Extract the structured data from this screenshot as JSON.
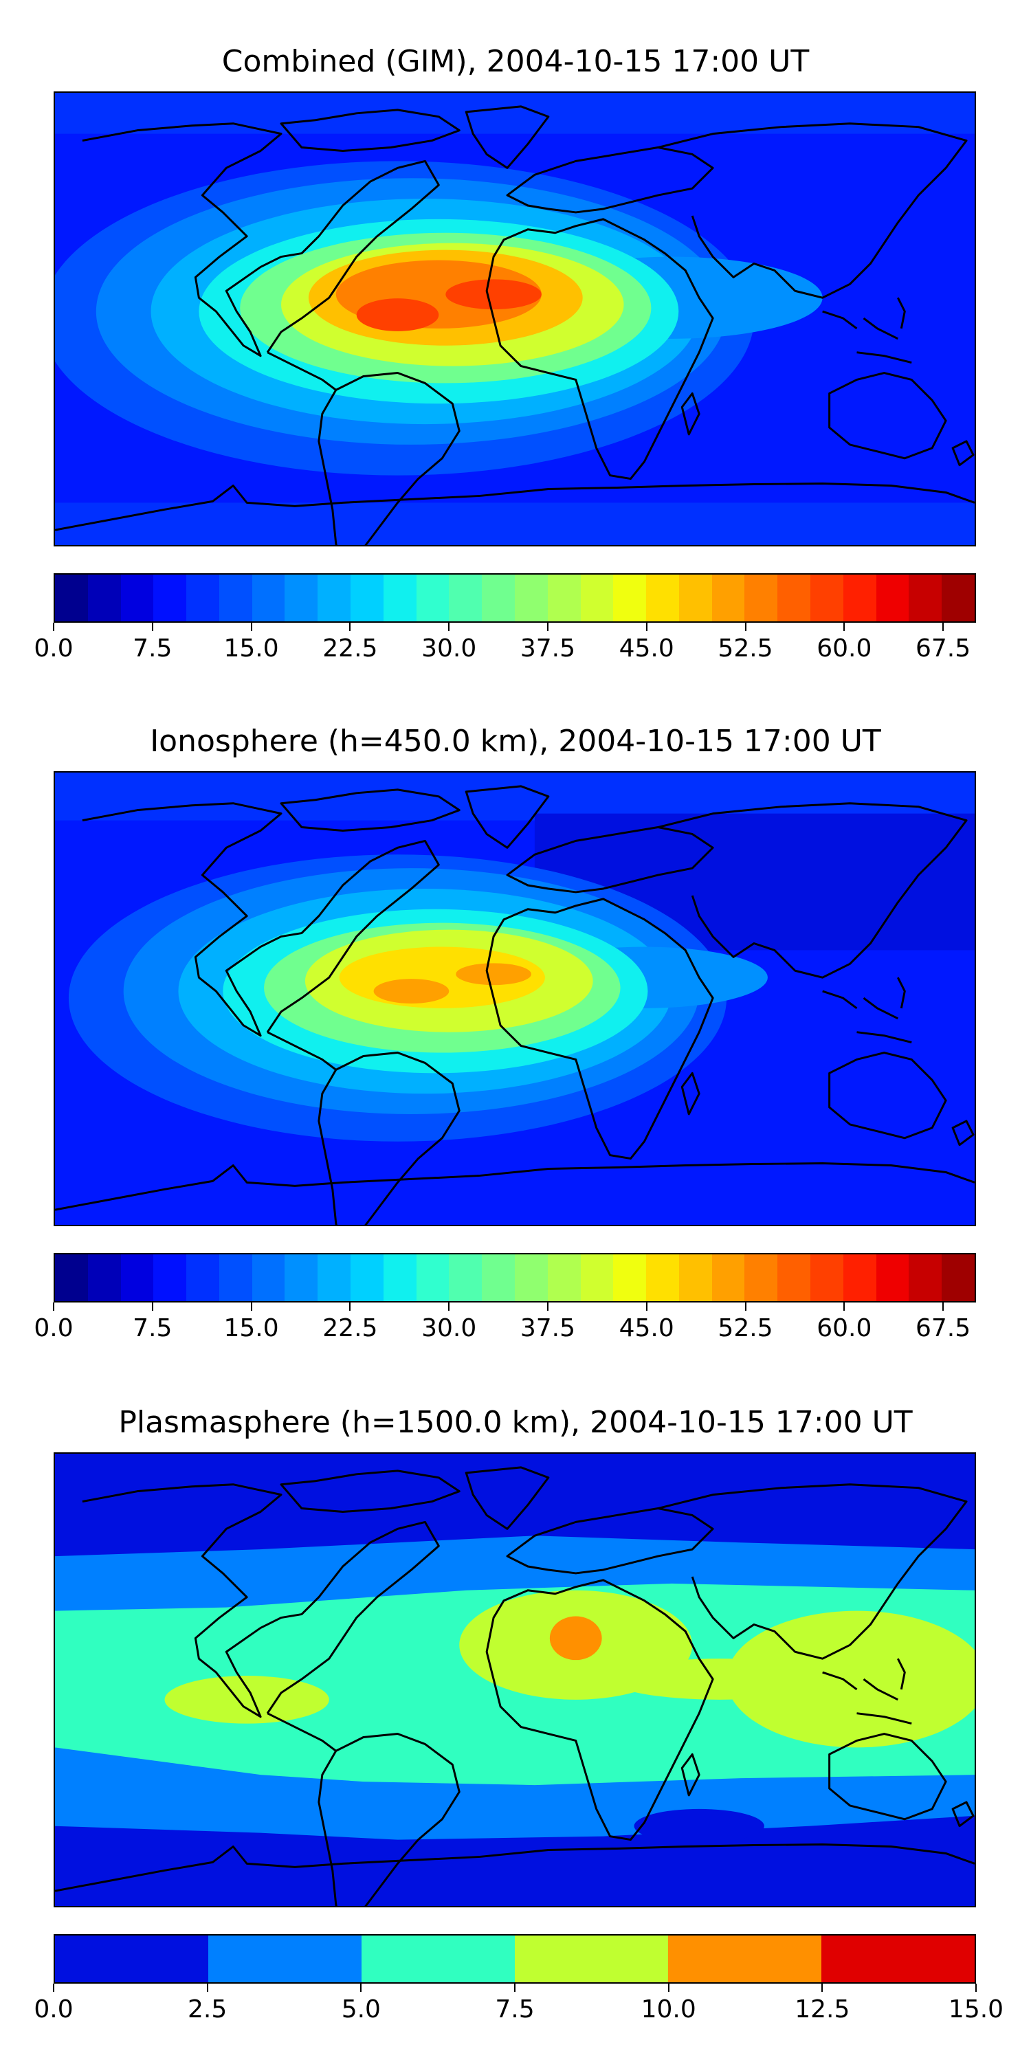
{
  "panels": [
    {
      "title": "Combined (GIM), 2004-10-15 17:00 UT",
      "tick_labels": [
        "0.0",
        "7.5",
        "15.0",
        "22.5",
        "30.0",
        "37.5",
        "45.0",
        "52.5",
        "60.0",
        "67.5"
      ],
      "tick_values": [
        0,
        7.5,
        15,
        22.5,
        30,
        37.5,
        45,
        52.5,
        60,
        67.5
      ],
      "range": [
        0,
        70
      ],
      "colors": [
        "#00008f",
        "#0000b8",
        "#0000e0",
        "#0010ff",
        "#0030ff",
        "#0050ff",
        "#0070ff",
        "#0090ff",
        "#00b0ff",
        "#00d0ff",
        "#10f0ef",
        "#30ffcf",
        "#50ffaf",
        "#70ff8f",
        "#90ff6f",
        "#b0ff4f",
        "#d0ff2f",
        "#f0ff0f",
        "#ffe000",
        "#ffc000",
        "#ffa000",
        "#ff8000",
        "#ff6000",
        "#ff4000",
        "#ff2000",
        "#ef0000",
        "#c70000",
        "#9f0000"
      ]
    },
    {
      "title": "Ionosphere  (h=450.0 km), 2004-10-15 17:00 UT",
      "tick_labels": [
        "0.0",
        "7.5",
        "15.0",
        "22.5",
        "30.0",
        "37.5",
        "45.0",
        "52.5",
        "60.0",
        "67.5"
      ],
      "tick_values": [
        0,
        7.5,
        15,
        22.5,
        30,
        37.5,
        45,
        52.5,
        60,
        67.5
      ],
      "range": [
        0,
        70
      ],
      "colors": [
        "#00008f",
        "#0000b8",
        "#0000e0",
        "#0010ff",
        "#0030ff",
        "#0050ff",
        "#0070ff",
        "#0090ff",
        "#00b0ff",
        "#00d0ff",
        "#10f0ef",
        "#30ffcf",
        "#50ffaf",
        "#70ff8f",
        "#90ff6f",
        "#b0ff4f",
        "#d0ff2f",
        "#f0ff0f",
        "#ffe000",
        "#ffc000",
        "#ffa000",
        "#ff8000",
        "#ff6000",
        "#ff4000",
        "#ff2000",
        "#ef0000",
        "#c70000",
        "#9f0000"
      ]
    },
    {
      "title": "Plasmasphere (h=1500.0 km), 2004-10-15 17:00 UT",
      "tick_labels": [
        "0.0",
        "2.5",
        "5.0",
        "7.5",
        "10.0",
        "12.5",
        "15.0"
      ],
      "tick_values": [
        0,
        2.5,
        5,
        7.5,
        10,
        12.5,
        15
      ],
      "range": [
        0,
        15
      ],
      "colors": [
        "#0010e0",
        "#0080ff",
        "#30ffc0",
        "#c0ff30",
        "#ff9000",
        "#e00000"
      ]
    }
  ]
}
